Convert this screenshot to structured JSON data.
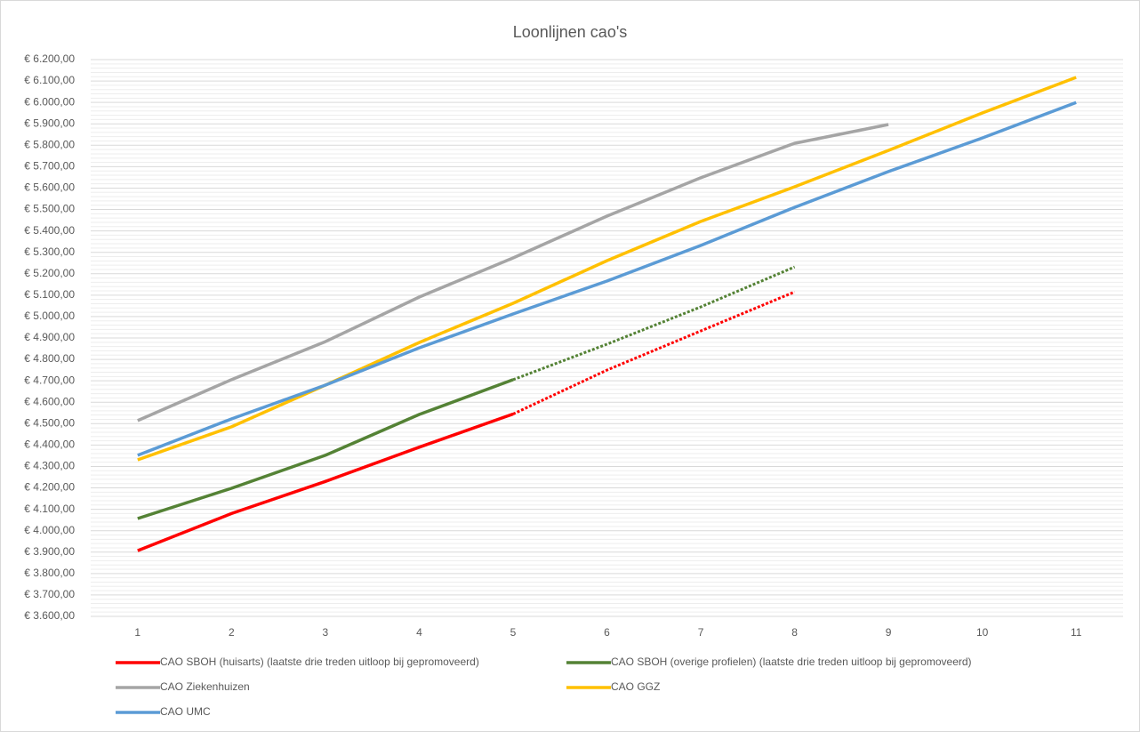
{
  "chart_data": {
    "type": "line",
    "title": "Loonlijnen cao's",
    "categories": [
      "1",
      "2",
      "3",
      "4",
      "5",
      "6",
      "7",
      "8",
      "9",
      "10",
      "11"
    ],
    "ylim": [
      3600,
      6200
    ],
    "yticks": [
      {
        "value": 3600,
        "label": "€ 3.600,00"
      },
      {
        "value": 3700,
        "label": "€ 3.700,00"
      },
      {
        "value": 3800,
        "label": "€ 3.800,00"
      },
      {
        "value": 3900,
        "label": "€ 3.900,00"
      },
      {
        "value": 4000,
        "label": "€ 4.000,00"
      },
      {
        "value": 4100,
        "label": "€ 4.100,00"
      },
      {
        "value": 4200,
        "label": "€ 4.200,00"
      },
      {
        "value": 4300,
        "label": "€ 4.300,00"
      },
      {
        "value": 4400,
        "label": "€ 4.400,00"
      },
      {
        "value": 4500,
        "label": "€ 4.500,00"
      },
      {
        "value": 4600,
        "label": "€ 4.600,00"
      },
      {
        "value": 4700,
        "label": "€ 4.700,00"
      },
      {
        "value": 4800,
        "label": "€ 4.800,00"
      },
      {
        "value": 4900,
        "label": "€ 4.900,00"
      },
      {
        "value": 5000,
        "label": "€ 5.000,00"
      },
      {
        "value": 5100,
        "label": "€ 5.100,00"
      },
      {
        "value": 5200,
        "label": "€ 5.200,00"
      },
      {
        "value": 5300,
        "label": "€ 5.300,00"
      },
      {
        "value": 5400,
        "label": "€ 5.400,00"
      },
      {
        "value": 5500,
        "label": "€ 5.500,00"
      },
      {
        "value": 5600,
        "label": "€ 5.600,00"
      },
      {
        "value": 5700,
        "label": "€ 5.700,00"
      },
      {
        "value": 5800,
        "label": "€ 5.800,00"
      },
      {
        "value": 5900,
        "label": "€ 5.900,00"
      },
      {
        "value": 6000,
        "label": "€ 6.000,00"
      },
      {
        "value": 6100,
        "label": "€ 6.100,00"
      },
      {
        "value": 6200,
        "label": "€ 6.200,00"
      }
    ],
    "grid": true,
    "minor_grid_per_major": 5,
    "legend": "bottom",
    "series": [
      {
        "name": "CAO SBOH (huisarts) (laatste drie treden uitloop bij gepromoveerd)",
        "color": "#ff0000",
        "dotted_from": 4,
        "values": [
          3907,
          4080,
          4230,
          4390,
          4545,
          4750,
          4933,
          5115,
          null,
          null,
          null
        ]
      },
      {
        "name": "CAO SBOH (overige profielen) (laatste drie treden uitloop bij gepromoveerd)",
        "color": "#548235",
        "dotted_from": 4,
        "values": [
          4057,
          4198,
          4352,
          4543,
          4705,
          4871,
          5045,
          5232,
          null,
          null,
          null
        ]
      },
      {
        "name": "CAO Ziekenhuizen",
        "color": "#a5a5a5",
        "values": [
          4514,
          4705,
          4883,
          5091,
          5274,
          5469,
          5648,
          5809,
          5897,
          null,
          null
        ]
      },
      {
        "name": "CAO GGZ",
        "color": "#ffc000",
        "values": [
          4331,
          4485,
          4680,
          4879,
          5062,
          5261,
          5444,
          5606,
          5776,
          5951,
          6117
        ]
      },
      {
        "name": "CAO UMC",
        "color": "#5b9bd5",
        "values": [
          4352,
          4522,
          4680,
          4854,
          5012,
          5166,
          5332,
          5510,
          5677,
          5834,
          6000
        ]
      }
    ]
  }
}
